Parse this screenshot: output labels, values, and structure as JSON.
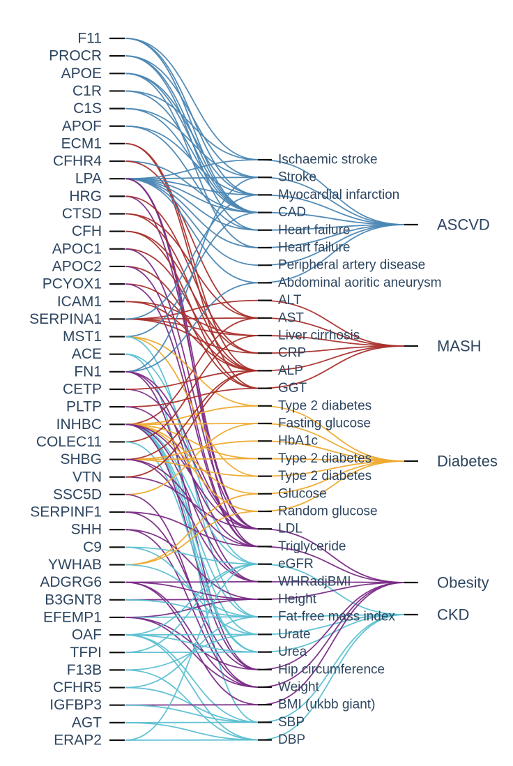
{
  "colors": {
    "ASCVD": "#4a86b3",
    "MASH": "#a8302c",
    "Diabetes": "#eeaa2e",
    "Obesity": "#7a2c86",
    "CKD": "#5cc0d2",
    "text": "#2d4560",
    "tick": "#111111"
  },
  "proteins": [
    "F11",
    "PROCR",
    "APOE",
    "C1R",
    "C1S",
    "APOF",
    "ECM1",
    "CFHR4",
    "LPA",
    "HRG",
    "CTSD",
    "CFH",
    "APOC1",
    "APOC2",
    "PCYOX1",
    "ICAM1",
    "SERPINA1",
    "MST1",
    "ACE",
    "FN1",
    "CETP",
    "PLTP",
    "INHBC",
    "COLEC11",
    "SHBG",
    "VTN",
    "SSC5D",
    "SERPINF1",
    "SHH",
    "C9",
    "YWHAB",
    "ADGRG6",
    "B3GNT8",
    "EFEMP1",
    "OAF",
    "TFPI",
    "F13B",
    "CFHR5",
    "IGFBP3",
    "AGT",
    "ERAP2"
  ],
  "traits": [
    "Ischaemic stroke",
    "Stroke",
    "Myocardial infarction",
    "CAD",
    "Heart failure",
    "Heart failure",
    "Peripheral artery disease",
    "Abdominal aoritic aneurysm",
    "ALT",
    "AST",
    "Liver cirrhosis",
    "CRP",
    "ALP",
    "GGT",
    "Type 2 diabetes",
    "Fasting glucose",
    "HbA1c",
    "Type 2 diabetes",
    "Type 2 diabetes",
    "Glucose",
    "Random glucose",
    "LDL",
    "Triglyceride",
    "eGFR",
    "WHRadjBMI",
    "Height",
    "Fat-free mass index",
    "Urate",
    "Urea",
    "Hip circumference",
    "Weight",
    "BMI (ukbb giant)",
    "SBP",
    "DBP"
  ],
  "trait_disease": [
    "ASCVD",
    "ASCVD",
    "ASCVD",
    "ASCVD",
    "ASCVD",
    "ASCVD",
    "ASCVD",
    "ASCVD",
    "MASH",
    "MASH",
    "MASH",
    "MASH",
    "MASH",
    "MASH",
    "Diabetes",
    "Diabetes",
    "Diabetes",
    "Diabetes",
    "Diabetes",
    "Diabetes",
    "Diabetes",
    "Obesity",
    "Obesity",
    "CKD",
    "Obesity",
    "Obesity",
    "CKD",
    "CKD",
    "CKD",
    "Obesity",
    "Obesity",
    "Obesity",
    "CKD",
    "CKD"
  ],
  "diseases": [
    "ASCVD",
    "MASH",
    "Diabetes",
    "Obesity",
    "CKD"
  ],
  "links": [
    [
      "F11",
      0,
      "ASCVD"
    ],
    [
      "F11",
      3,
      "ASCVD"
    ],
    [
      "F11",
      2,
      "ASCVD"
    ],
    [
      "PROCR",
      1,
      "ASCVD"
    ],
    [
      "PROCR",
      3,
      "ASCVD"
    ],
    [
      "PROCR",
      4,
      "ASCVD"
    ],
    [
      "APOE",
      2,
      "ASCVD"
    ],
    [
      "APOE",
      3,
      "ASCVD"
    ],
    [
      "APOE",
      5,
      "ASCVD"
    ],
    [
      "C1R",
      0,
      "ASCVD"
    ],
    [
      "C1R",
      3,
      "ASCVD"
    ],
    [
      "C1S",
      1,
      "ASCVD"
    ],
    [
      "C1S",
      3,
      "ASCVD"
    ],
    [
      "APOF",
      2,
      "ASCVD"
    ],
    [
      "APOF",
      4,
      "ASCVD"
    ],
    [
      "ECM1",
      12,
      "MASH"
    ],
    [
      "ECM1",
      13,
      "MASH"
    ],
    [
      "CFHR4",
      3,
      "ASCVD"
    ],
    [
      "CFHR4",
      9,
      "MASH"
    ],
    [
      "LPA",
      0,
      "ASCVD"
    ],
    [
      "LPA",
      1,
      "ASCVD"
    ],
    [
      "LPA",
      2,
      "ASCVD"
    ],
    [
      "LPA",
      3,
      "ASCVD"
    ],
    [
      "LPA",
      4,
      "ASCVD"
    ],
    [
      "LPA",
      5,
      "ASCVD"
    ],
    [
      "LPA",
      6,
      "ASCVD"
    ],
    [
      "LPA",
      7,
      "ASCVD"
    ],
    [
      "LPA",
      21,
      "Obesity"
    ],
    [
      "LPA",
      22,
      "Obesity"
    ],
    [
      "HRG",
      21,
      "Obesity"
    ],
    [
      "HRG",
      11,
      "MASH"
    ],
    [
      "CTSD",
      12,
      "MASH"
    ],
    [
      "CTSD",
      9,
      "MASH"
    ],
    [
      "CFH",
      11,
      "MASH"
    ],
    [
      "CFH",
      13,
      "MASH"
    ],
    [
      "APOC1",
      12,
      "MASH"
    ],
    [
      "APOC1",
      21,
      "Obesity"
    ],
    [
      "APOC2",
      13,
      "MASH"
    ],
    [
      "APOC2",
      22,
      "Obesity"
    ],
    [
      "PCYOX1",
      12,
      "MASH"
    ],
    [
      "PCYOX1",
      22,
      "Obesity"
    ],
    [
      "ICAM1",
      12,
      "MASH"
    ],
    [
      "ICAM1",
      10,
      "MASH"
    ],
    [
      "SERPINA1",
      9,
      "MASH"
    ],
    [
      "SERPINA1",
      8,
      "MASH"
    ],
    [
      "SERPINA1",
      11,
      "MASH"
    ],
    [
      "SERPINA1",
      10,
      "MASH"
    ],
    [
      "SERPINA1",
      2,
      "ASCVD"
    ],
    [
      "MST1",
      18,
      "Diabetes"
    ],
    [
      "MST1",
      14,
      "Diabetes"
    ],
    [
      "MST1",
      3,
      "ASCVD"
    ],
    [
      "MST1",
      26,
      "CKD"
    ],
    [
      "ACE",
      23,
      "CKD"
    ],
    [
      "ACE",
      32,
      "CKD"
    ],
    [
      "FN1",
      1,
      "ASCVD"
    ],
    [
      "FN1",
      7,
      "ASCVD"
    ],
    [
      "FN1",
      21,
      "Obesity"
    ],
    [
      "FN1",
      24,
      "Obesity"
    ],
    [
      "FN1",
      29,
      "Obesity"
    ],
    [
      "CETP",
      21,
      "Obesity"
    ],
    [
      "CETP",
      12,
      "MASH"
    ],
    [
      "PLTP",
      13,
      "MASH"
    ],
    [
      "PLTP",
      22,
      "Obesity"
    ],
    [
      "INHBC",
      9,
      "MASH"
    ],
    [
      "INHBC",
      15,
      "Diabetes"
    ],
    [
      "INHBC",
      19,
      "Diabetes"
    ],
    [
      "INHBC",
      14,
      "Diabetes"
    ],
    [
      "INHBC",
      17,
      "Diabetes"
    ],
    [
      "INHBC",
      20,
      "Diabetes"
    ],
    [
      "INHBC",
      23,
      "CKD"
    ],
    [
      "INHBC",
      27,
      "CKD"
    ],
    [
      "INHBC",
      28,
      "CKD"
    ],
    [
      "INHBC",
      26,
      "CKD"
    ],
    [
      "INHBC",
      24,
      "Obesity"
    ],
    [
      "INHBC",
      29,
      "Obesity"
    ],
    [
      "INHBC",
      21,
      "Obesity"
    ],
    [
      "COLEC11",
      10,
      "MASH"
    ],
    [
      "COLEC11",
      28,
      "CKD"
    ],
    [
      "SHBG",
      17,
      "Diabetes"
    ],
    [
      "SHBG",
      18,
      "Diabetes"
    ],
    [
      "SHBG",
      16,
      "Diabetes"
    ],
    [
      "SHBG",
      12,
      "MASH"
    ],
    [
      "SHBG",
      22,
      "Obesity"
    ],
    [
      "SHBG",
      24,
      "Obesity"
    ],
    [
      "VTN",
      21,
      "Obesity"
    ],
    [
      "VTN",
      12,
      "MASH"
    ],
    [
      "SSC5D",
      15,
      "Diabetes"
    ],
    [
      "SSC5D",
      30,
      "Obesity"
    ],
    [
      "SERPINF1",
      22,
      "Obesity"
    ],
    [
      "SERPINF1",
      29,
      "Obesity"
    ],
    [
      "SHH",
      25,
      "Obesity"
    ],
    [
      "SHH",
      30,
      "Obesity"
    ],
    [
      "C9",
      23,
      "CKD"
    ],
    [
      "C9",
      27,
      "CKD"
    ],
    [
      "YWHAB",
      20,
      "Diabetes"
    ],
    [
      "YWHAB",
      19,
      "Diabetes"
    ],
    [
      "YWHAB",
      26,
      "CKD"
    ],
    [
      "ADGRG6",
      25,
      "Obesity"
    ],
    [
      "ADGRG6",
      24,
      "Obesity"
    ],
    [
      "ADGRG6",
      30,
      "Obesity"
    ],
    [
      "ADGRG6",
      31,
      "Obesity"
    ],
    [
      "B3GNT8",
      25,
      "Obesity"
    ],
    [
      "B3GNT8",
      26,
      "CKD"
    ],
    [
      "EFEMP1",
      25,
      "Obesity"
    ],
    [
      "EFEMP1",
      26,
      "CKD"
    ],
    [
      "EFEMP1",
      29,
      "Obesity"
    ],
    [
      "EFEMP1",
      30,
      "Obesity"
    ],
    [
      "OAF",
      27,
      "CKD"
    ],
    [
      "OAF",
      28,
      "CKD"
    ],
    [
      "OAF",
      32,
      "CKD"
    ],
    [
      "OAF",
      33,
      "CKD"
    ],
    [
      "OAF",
      23,
      "CKD"
    ],
    [
      "TFPI",
      23,
      "CKD"
    ],
    [
      "TFPI",
      28,
      "CKD"
    ],
    [
      "F13B",
      27,
      "CKD"
    ],
    [
      "F13B",
      33,
      "CKD"
    ],
    [
      "CFHR5",
      26,
      "CKD"
    ],
    [
      "CFHR5",
      32,
      "CKD"
    ],
    [
      "IGFBP3",
      31,
      "Obesity"
    ],
    [
      "IGFBP3",
      32,
      "CKD"
    ],
    [
      "AGT",
      33,
      "CKD"
    ],
    [
      "AGT",
      32,
      "CKD"
    ],
    [
      "ERAP2",
      23,
      "CKD"
    ],
    [
      "ERAP2",
      33,
      "CKD"
    ]
  ]
}
